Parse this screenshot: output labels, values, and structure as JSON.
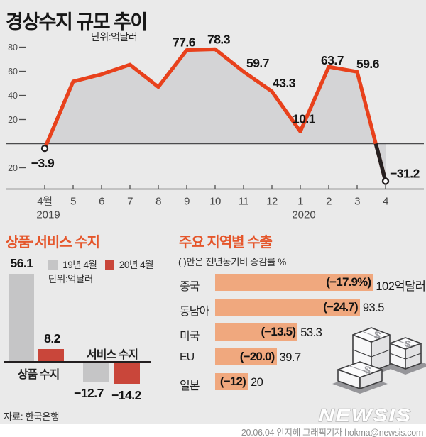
{
  "header": {
    "title": "경상수지 규모 추이",
    "unit": "단위:억달러"
  },
  "colors": {
    "background": "#eaeaea",
    "line_red": "#e8411c",
    "line_black": "#262020",
    "area_fill": "#d4d4d6",
    "bar_gray": "#c5c5c6",
    "bar_red": "#c9463a",
    "bar_salmon": "#f0a87e",
    "title_orange": "#e5562b"
  },
  "chart_data": [
    {
      "name": "current-account-trend",
      "type": "area",
      "title": "경상수지 규모 추이",
      "unit_label": "단위:억달러",
      "x_tick_labels": [
        "4월",
        "5",
        "6",
        "7",
        "8",
        "9",
        "10",
        "11",
        "12",
        "1",
        "2",
        "3",
        "4"
      ],
      "year_labels": [
        {
          "text": "2019",
          "month_index": 0
        },
        {
          "text": "2020",
          "month_index": 9
        }
      ],
      "y_ticks": [
        80,
        60,
        40,
        20,
        0,
        -20
      ],
      "values": [
        -3.9,
        51.5,
        57.5,
        65.5,
        47,
        77.6,
        78.3,
        59.7,
        43.3,
        10.1,
        63.7,
        59.6,
        -31.2
      ],
      "point_labels": {
        "0": "−3.9",
        "5": "77.6",
        "6": "78.3",
        "7": "59.7",
        "8": "43.3",
        "9": "10.1",
        "10": "63.7",
        "11": "59.6",
        "12": "−31.2"
      }
    },
    {
      "name": "goods-services-balance",
      "type": "bar",
      "title": "상품·서비스 수지",
      "unit_label": "단위:억달러",
      "legend": [
        {
          "label": "19년 4월"
        },
        {
          "label": "20년 4월"
        }
      ],
      "groups": [
        {
          "label": "상품 수지",
          "values": [
            56.1,
            8.2
          ],
          "value_labels": [
            "56.1",
            "8.2"
          ]
        },
        {
          "label": "서비스 수지",
          "values": [
            -12.7,
            -14.2
          ],
          "value_labels": [
            "−12.7",
            "−14.2"
          ]
        }
      ]
    },
    {
      "name": "exports-by-region",
      "type": "hbar",
      "title": "주요 지역별 수출",
      "note": "( )안은 전년동기비 증감률 %",
      "rows": [
        {
          "label": "중국",
          "change": "(−17.9%)",
          "value": 102,
          "value_label": "102억달러"
        },
        {
          "label": "동남아",
          "change": "(−24.7)",
          "value": 93.5,
          "value_label": "93.5"
        },
        {
          "label": "미국",
          "change": "(−13.5)",
          "value": 53.3,
          "value_label": "53.3"
        },
        {
          "label": "EU",
          "change": "(−20.0)",
          "value": 39.7,
          "value_label": "39.7"
        },
        {
          "label": "일본",
          "change": "(−12)",
          "value": 20,
          "value_label": "20"
        }
      ]
    }
  ],
  "footer": {
    "source": "자료: 한국은행",
    "logo": "NEWSIS",
    "credit": "20.06.04 안지혜 그래픽기자 hokma@newsis.com"
  },
  "icons": {
    "dollar": "$"
  }
}
